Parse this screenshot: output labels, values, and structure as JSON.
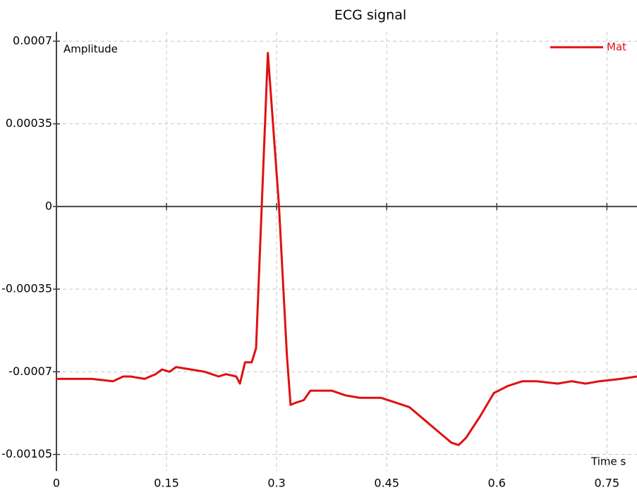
{
  "chart_data": {
    "type": "line",
    "title": "ECG signal",
    "x_label": "Time s",
    "y_label": "Amplitude",
    "x": [
      0,
      0.019,
      0.048,
      0.077,
      0.091,
      0.101,
      0.12,
      0.135,
      0.144,
      0.154,
      0.163,
      0.183,
      0.202,
      0.221,
      0.231,
      0.245,
      0.25,
      0.257,
      0.266,
      0.272,
      0.288,
      0.303,
      0.314,
      0.319,
      0.327,
      0.337,
      0.346,
      0.375,
      0.394,
      0.413,
      0.442,
      0.462,
      0.481,
      0.5,
      0.519,
      0.538,
      0.548,
      0.558,
      0.577,
      0.596,
      0.615,
      0.635,
      0.654,
      0.683,
      0.702,
      0.721,
      0.74,
      0.769,
      0.791
    ],
    "series": [
      {
        "name": "Mat",
        "color": "#e01010",
        "values": [
          -0.00073,
          -0.00073,
          -0.00073,
          -0.00074,
          -0.00072,
          -0.00072,
          -0.00073,
          -0.00071,
          -0.00069,
          -0.0007,
          -0.00068,
          -0.00069,
          -0.0007,
          -0.00072,
          -0.00071,
          -0.00072,
          -0.00075,
          -0.00066,
          -0.00066,
          -0.0006,
          0.00065,
          1e-05,
          -0.00063,
          -0.00084,
          -0.00083,
          -0.00082,
          -0.00078,
          -0.00078,
          -0.0008,
          -0.00081,
          -0.00081,
          -0.00083,
          -0.00085,
          -0.0009,
          -0.00095,
          -0.001,
          -0.00101,
          -0.00098,
          -0.00089,
          -0.00079,
          -0.00076,
          -0.00074,
          -0.00074,
          -0.00075,
          -0.00074,
          -0.00075,
          -0.00074,
          -0.00073,
          -0.00072
        ]
      }
    ],
    "xlim": [
      0,
      0.791
    ],
    "ylim": [
      -0.00112,
      0.00074
    ],
    "xticks": [
      0,
      0.15,
      0.3,
      0.45,
      0.6,
      0.75
    ],
    "yticks": [
      0.0007,
      0.00035,
      0,
      -0.00035,
      -0.0007,
      -0.00105
    ],
    "grid": true,
    "legend": "top-right"
  }
}
